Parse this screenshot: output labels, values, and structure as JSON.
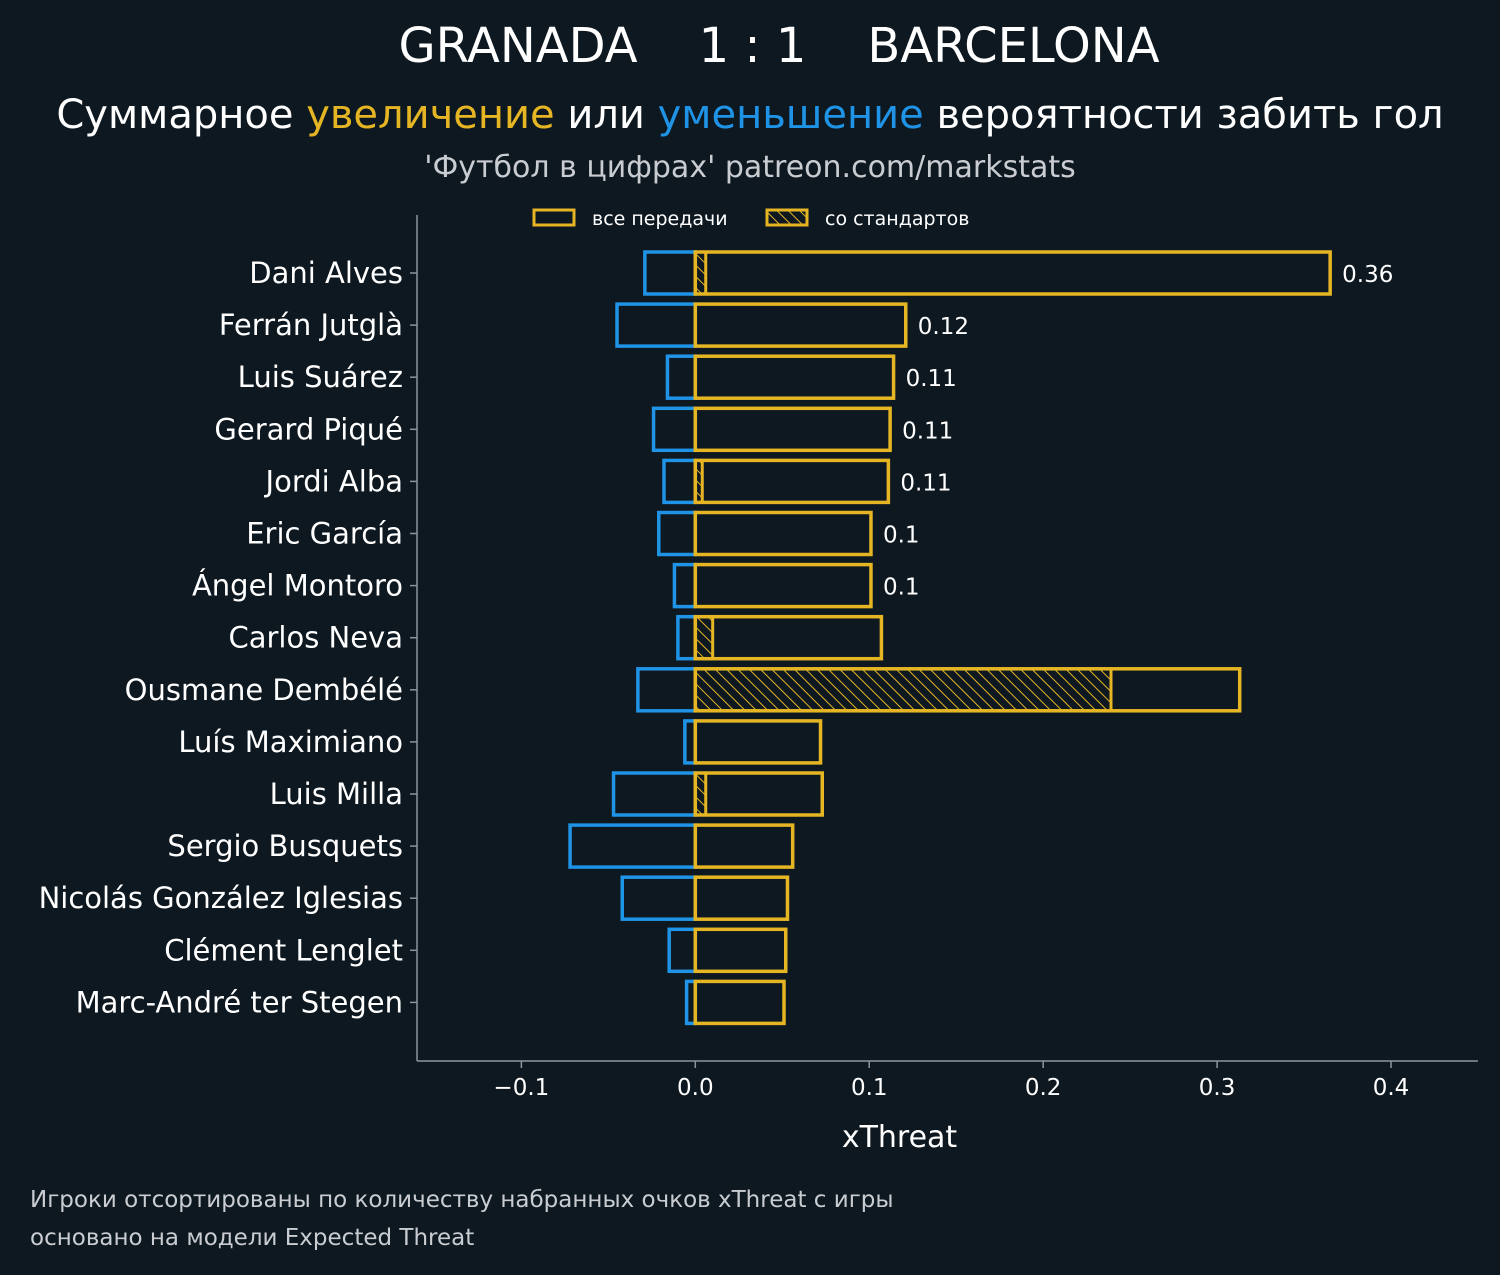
{
  "header": {
    "title": "GRANADA    1 : 1    BARCELONA",
    "subtitle_part1": "Суммарное ",
    "subtitle_up": "увеличение",
    "subtitle_part2": " или ",
    "subtitle_down": "уменьшение",
    "subtitle_part3": " вероятности забить гол",
    "credit": "'Футбол в цифрах' patreon.com/markstats"
  },
  "footnotes": {
    "line1": "Игроки отсортированы по количеству набранных очков xThreat с игры",
    "line2": "основано на модели Expected Threat"
  },
  "colors": {
    "background": "#0e1820",
    "positive": "#e5b523",
    "negative": "#1f93e5",
    "axis": "#8a969e"
  },
  "chart_data": {
    "type": "bar",
    "orientation": "horizontal",
    "xlabel": "xThreat",
    "xlim": [
      -0.16,
      0.45
    ],
    "xticks": [
      -0.1,
      0.0,
      0.1,
      0.2,
      0.3,
      0.4
    ],
    "xtick_labels": [
      "−0.1",
      "0.0",
      "0.1",
      "0.2",
      "0.3",
      "0.4"
    ],
    "legend": {
      "position": "top",
      "entries": [
        "все передачи",
        "со стандартов"
      ]
    },
    "categories": [
      "Dani Alves",
      "Ferrán Jutglà",
      "Luis Suárez",
      "Gerard Piqué",
      "Jordi Alba",
      "Eric García",
      "Ángel Montoro",
      "Carlos Neva",
      "Ousmane Dembélé",
      "Luís Maximiano",
      "Luis Milla",
      "Sergio Busquets",
      "Nicolás González Iglesias",
      "Clément Lenglet",
      "Marc-André ter Stegen"
    ],
    "series": [
      {
        "name": "все передачи (положительные)",
        "values": [
          0.365,
          0.121,
          0.114,
          0.112,
          0.111,
          0.101,
          0.101,
          0.107,
          0.313,
          0.072,
          0.073,
          0.056,
          0.053,
          0.052,
          0.051
        ]
      },
      {
        "name": "все передачи (отрицательные)",
        "values": [
          -0.029,
          -0.045,
          -0.016,
          -0.024,
          -0.018,
          -0.021,
          -0.012,
          -0.01,
          -0.033,
          -0.006,
          -0.047,
          -0.072,
          -0.042,
          -0.015,
          -0.005
        ]
      },
      {
        "name": "со стандартов",
        "values": [
          0.006,
          0.0,
          0.0,
          0.0,
          0.004,
          0.0,
          0.0,
          0.01,
          0.239,
          0.0,
          0.006,
          0.0,
          0.0,
          0.0,
          0.0
        ]
      }
    ],
    "value_labels": [
      "0.36",
      "0.12",
      "0.11",
      "0.11",
      "0.11",
      "0.1",
      "0.1",
      "",
      "",
      "",
      "",
      "",
      "",
      "",
      ""
    ]
  }
}
